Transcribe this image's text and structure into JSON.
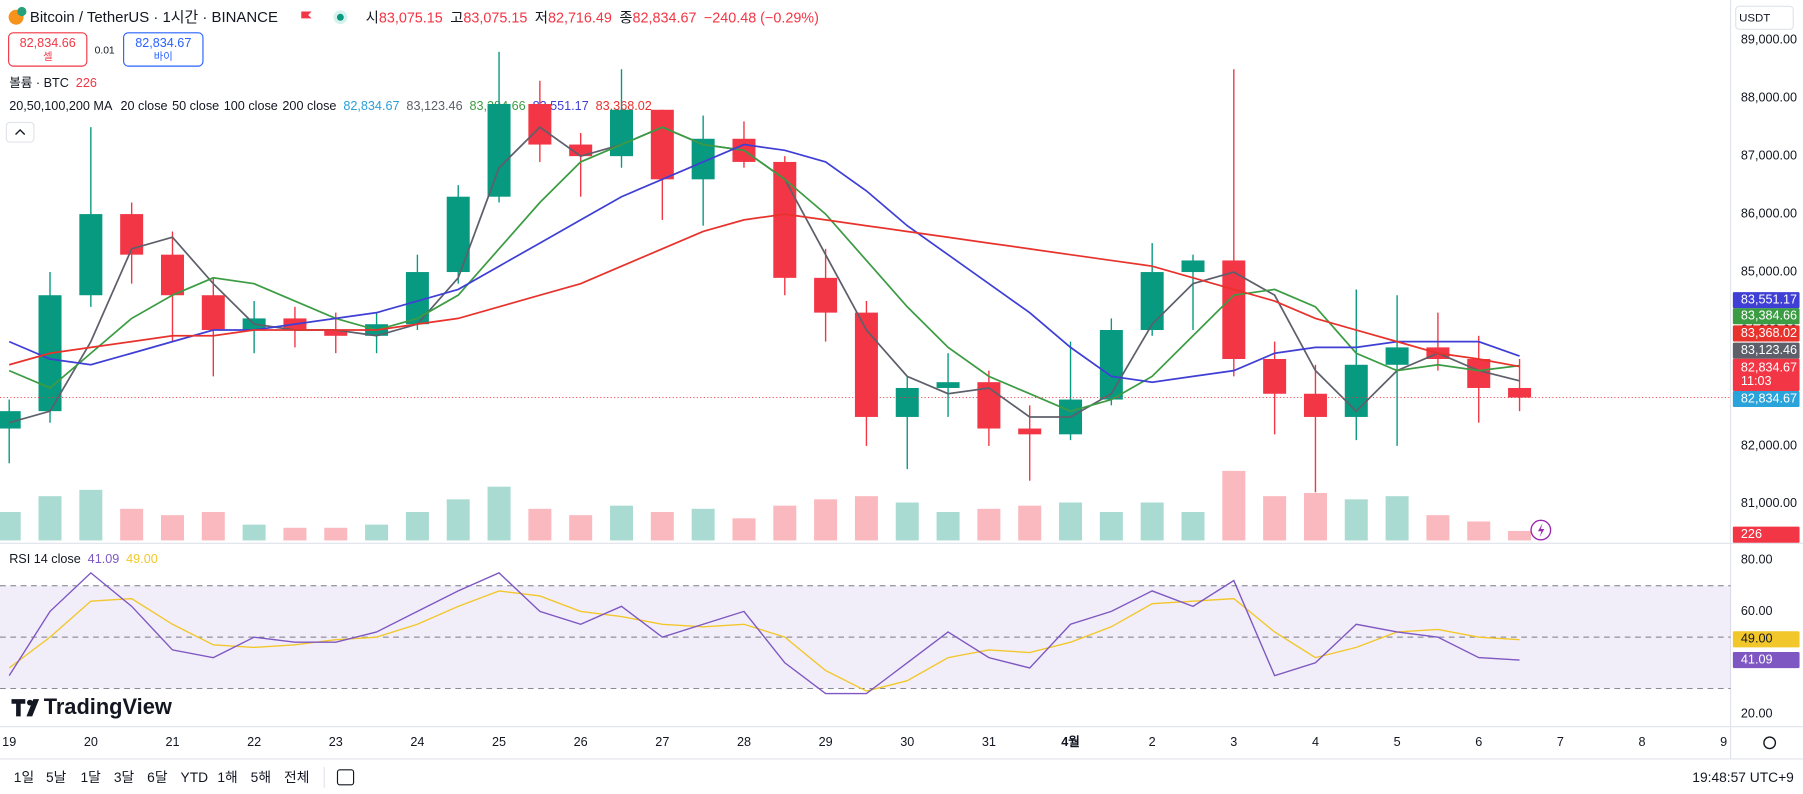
{
  "header": {
    "title": "Bitcoin / TetherUS · 1시간 · BINANCE",
    "ohlc": [
      {
        "label": "시",
        "value": "83,075.15"
      },
      {
        "label": "고",
        "value": "83,075.15"
      },
      {
        "label": "저",
        "value": "82,716.49"
      },
      {
        "label": "종",
        "value": "82,834.67"
      }
    ],
    "change": "−240.48 (−0.29%)",
    "sell": {
      "price": "82,834.66",
      "label": "셀"
    },
    "spread": "0.01",
    "buy": {
      "price": "82,834.67",
      "label": "바이"
    },
    "currency": "USDT"
  },
  "chart_data": {
    "type": "candlestick",
    "categories": [
      "19",
      null,
      "20",
      null,
      "21",
      null,
      "22",
      null,
      "23",
      null,
      "24",
      null,
      "25",
      null,
      "26",
      null,
      "27",
      null,
      "28",
      null,
      "29",
      null,
      "30",
      null,
      "31",
      null,
      "4월",
      null,
      "2",
      null,
      "3",
      null,
      "4",
      null,
      "5",
      null,
      "6",
      null,
      "7",
      null,
      "8",
      null,
      "9",
      null
    ],
    "open": [
      82300,
      82600,
      84600,
      86000,
      85300,
      84600,
      84000,
      84200,
      84000,
      83900,
      84100,
      85000,
      86300,
      87900,
      87200,
      87000,
      87800,
      86600,
      87300,
      86900,
      84900,
      84300,
      82500,
      83000,
      83100,
      82300,
      82200,
      82800,
      84000,
      85000,
      85200,
      83500,
      82900,
      82500,
      83400,
      83700,
      83500,
      83000,
      null,
      null,
      null,
      null,
      null,
      null
    ],
    "high": [
      82800,
      85000,
      87500,
      86200,
      85700,
      84900,
      84500,
      84400,
      84300,
      84300,
      85300,
      86500,
      88800,
      88300,
      87400,
      88500,
      87800,
      87700,
      87600,
      87000,
      85400,
      84500,
      83200,
      83600,
      83300,
      82700,
      83800,
      84200,
      85500,
      85300,
      88500,
      83800,
      83400,
      84700,
      84600,
      84300,
      83900,
      83500,
      null,
      null,
      null,
      null,
      null,
      null
    ],
    "low": [
      81700,
      82400,
      84400,
      84800,
      83800,
      83200,
      83600,
      83700,
      83600,
      83600,
      84000,
      84800,
      86200,
      86900,
      86300,
      86800,
      85900,
      85800,
      86800,
      84600,
      83800,
      82000,
      81600,
      82500,
      82000,
      81400,
      82100,
      82700,
      83900,
      84000,
      83200,
      82200,
      81200,
      82100,
      82000,
      83300,
      82400,
      82600,
      null,
      null,
      null,
      null,
      null,
      null
    ],
    "close": [
      82600,
      84600,
      86000,
      85300,
      84600,
      84000,
      84200,
      84000,
      83900,
      84100,
      85000,
      86300,
      87900,
      87200,
      87000,
      87800,
      86600,
      87300,
      86900,
      84900,
      84300,
      82500,
      83000,
      83100,
      82300,
      82200,
      82800,
      84000,
      85000,
      85200,
      83500,
      82900,
      82500,
      83400,
      83700,
      83500,
      83000,
      82834.67,
      null,
      null,
      null,
      null,
      null,
      null
    ],
    "up_color": "#089981",
    "down_color": "#f23645",
    "ylim": [
      80369,
      89694
    ],
    "yticks": [
      {
        "value": 81000,
        "label": "81,000.00"
      },
      {
        "value": 82000,
        "label": "82,000.00"
      },
      {
        "value": 83000,
        "label": "83,000.00"
      },
      {
        "value": 84000,
        "label": "84,000.00"
      },
      {
        "value": 85000,
        "label": "85,000.00"
      },
      {
        "value": 86000,
        "label": "86,000.00"
      },
      {
        "value": 87000,
        "label": "87,000.00"
      },
      {
        "value": 88000,
        "label": "88,000.00"
      },
      {
        "value": 89000,
        "label": "89,000.00"
      }
    ],
    "ma_label": "20,50,100,200 MA",
    "legend_close": "82,834.67",
    "series": [
      {
        "name": "20 close",
        "color": "#5d606b",
        "last_label": "83,123.46",
        "values": [
          82400,
          82600,
          83800,
          85400,
          85600,
          84800,
          84100,
          84000,
          84000,
          83900,
          84100,
          84900,
          86800,
          87500,
          87000,
          87200,
          87500,
          87200,
          87100,
          86600,
          85300,
          84000,
          83200,
          82900,
          83000,
          82500,
          82500,
          82900,
          84100,
          84800,
          85000,
          84600,
          83300,
          82600,
          83300,
          83600,
          83300,
          83123.46,
          null,
          null,
          null,
          null,
          null,
          null
        ]
      },
      {
        "name": "50 close",
        "color": "#3c9c43",
        "last_label": "83,384.66",
        "values": [
          83300,
          83000,
          83600,
          84200,
          84600,
          84900,
          84800,
          84500,
          84200,
          84000,
          84200,
          84600,
          85400,
          86200,
          86900,
          87200,
          87500,
          87200,
          87100,
          86600,
          86000,
          85200,
          84400,
          83700,
          83200,
          82900,
          82600,
          82800,
          83200,
          83900,
          84600,
          84700,
          84400,
          83600,
          83300,
          83400,
          83300,
          83384.66,
          null,
          null,
          null,
          null,
          null,
          null
        ]
      },
      {
        "name": "100 close",
        "color": "#3f3fd6",
        "last_label": "83,551.17",
        "values": [
          83800,
          83500,
          83400,
          83600,
          83800,
          84000,
          84000,
          84100,
          84200,
          84300,
          84500,
          84700,
          85100,
          85500,
          85900,
          86300,
          86600,
          86900,
          87200,
          87100,
          86900,
          86400,
          85800,
          85300,
          84800,
          84300,
          83700,
          83200,
          83100,
          83200,
          83300,
          83600,
          83700,
          83700,
          83800,
          83800,
          83800,
          83551.17,
          null,
          null,
          null,
          null,
          null,
          null
        ]
      },
      {
        "name": "200 close",
        "color": "#e8322c",
        "last_label": "83,368.02",
        "values": [
          83400,
          83600,
          83700,
          83800,
          83900,
          83900,
          84000,
          84000,
          84000,
          84000,
          84100,
          84200,
          84400,
          84600,
          84800,
          85100,
          85400,
          85700,
          85900,
          86000,
          85900,
          85800,
          85700,
          85600,
          85500,
          85400,
          85300,
          85200,
          85100,
          84900,
          84700,
          84500,
          84200,
          84000,
          83800,
          83600,
          83500,
          83368.02,
          null,
          null,
          null,
          null,
          null,
          null
        ]
      }
    ],
    "price_line": {
      "value": 82834.67,
      "label": "82,834.67",
      "countdown": "11:03"
    },
    "volume": {
      "label": "볼륨 · BTC",
      "value_label": "226",
      "ylim": [
        0,
        40000
      ],
      "values": [
        9000,
        14000,
        16000,
        10000,
        8000,
        9000,
        5000,
        4000,
        4000,
        5000,
        9000,
        13000,
        17000,
        10000,
        8000,
        11000,
        9000,
        10000,
        7000,
        11000,
        13000,
        14000,
        12000,
        9000,
        10000,
        11000,
        12000,
        9000,
        12000,
        9000,
        22000,
        14000,
        15000,
        13000,
        14000,
        8000,
        6000,
        3000,
        null,
        null,
        null,
        null,
        null,
        null
      ]
    },
    "rsi": {
      "label": "RSI 14 close",
      "value_label": "41.09",
      "ma_label": "49.00",
      "color": "#7e57c2",
      "ma_color": "#f2c72c",
      "ylim": [
        16,
        85.4
      ],
      "bands": [
        30,
        70
      ],
      "midline": 50,
      "yticks": [
        {
          "value": 20,
          "label": "20.00"
        },
        {
          "value": 60,
          "label": "60.00"
        },
        {
          "value": 80,
          "label": "80.00"
        }
      ],
      "values": [
        35,
        60,
        75,
        62,
        45,
        42,
        50,
        48,
        48,
        52,
        60,
        68,
        75,
        60,
        55,
        62,
        50,
        55,
        60,
        40,
        28,
        28,
        40,
        52,
        42,
        38,
        55,
        60,
        68,
        62,
        72,
        35,
        40,
        55,
        52,
        50,
        42,
        41.09,
        null,
        null,
        null,
        null,
        null,
        null
      ],
      "ma_values": [
        38,
        50,
        64,
        65,
        55,
        47,
        46,
        47,
        49,
        50,
        55,
        62,
        68,
        66,
        60,
        58,
        55,
        54,
        55,
        50,
        37,
        29,
        33,
        42,
        45,
        44,
        48,
        54,
        63,
        64,
        65,
        52,
        42,
        46,
        52,
        53,
        50,
        49,
        null,
        null,
        null,
        null,
        null,
        null
      ]
    }
  },
  "brand": "TradingView",
  "toolbar": {
    "ranges": [
      "1일",
      "5날",
      "1달",
      "3달",
      "6달",
      "YTD",
      "1해",
      "5해",
      "전체"
    ],
    "clock": "19:48:57 UTC+9"
  }
}
